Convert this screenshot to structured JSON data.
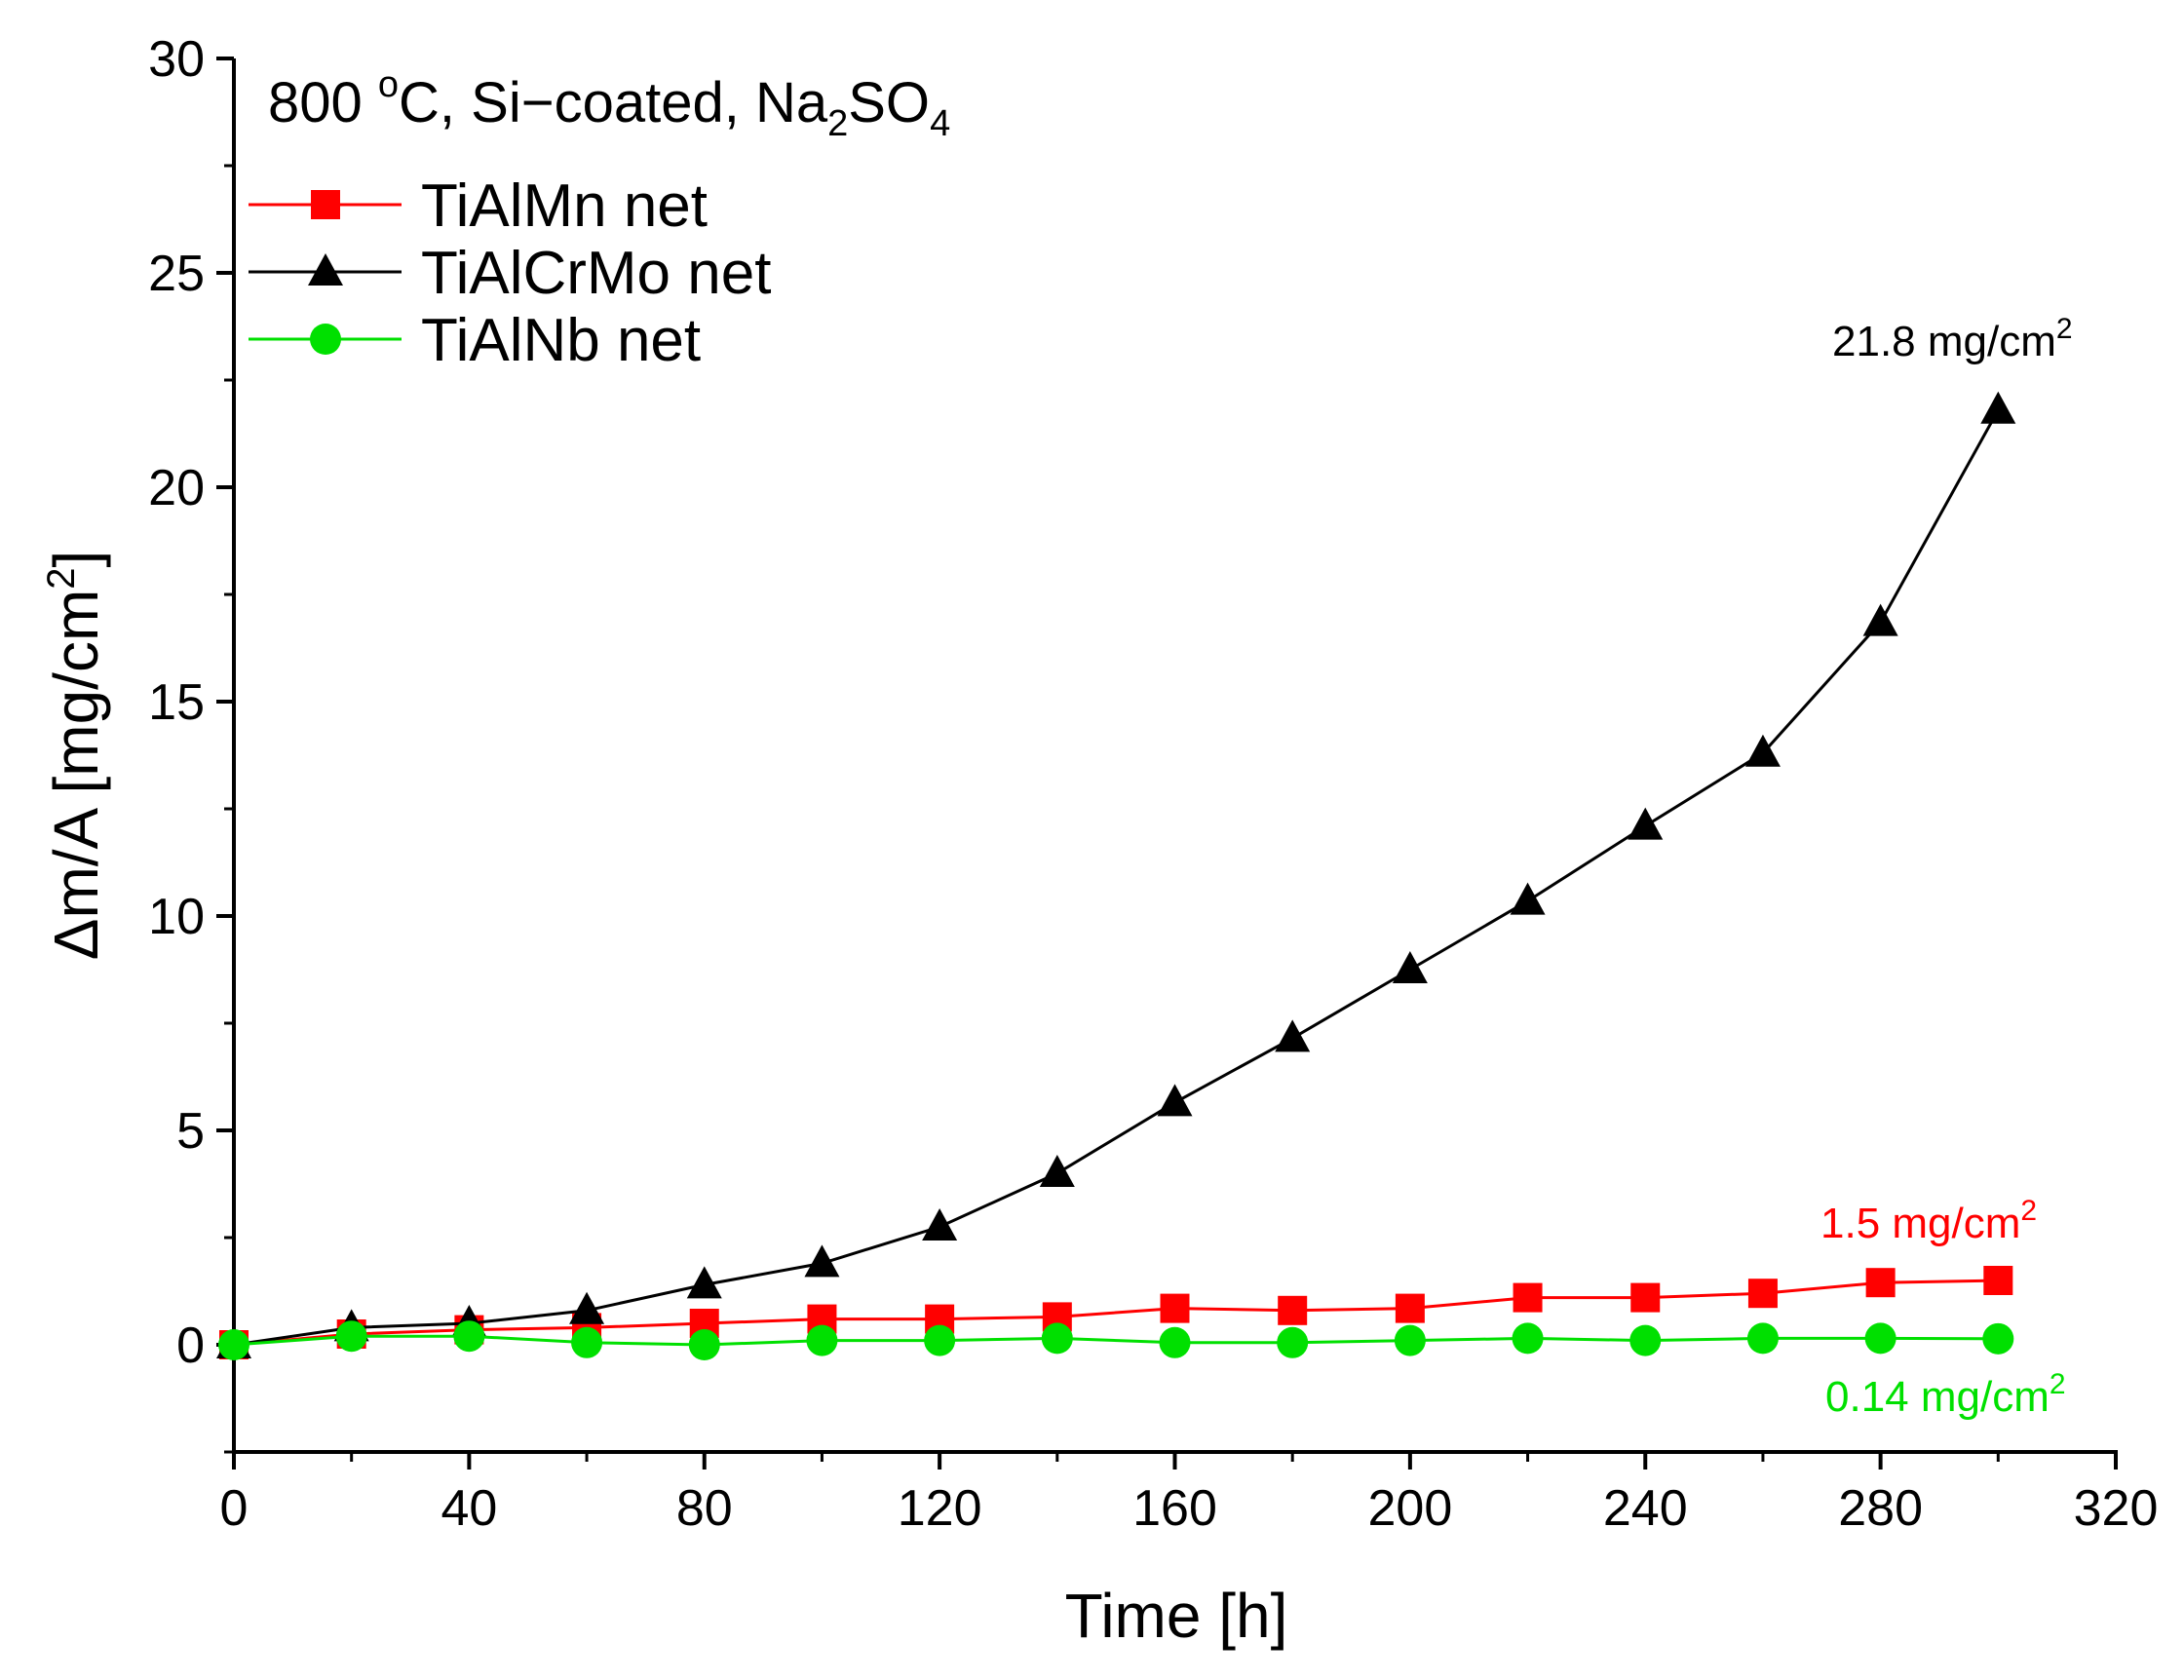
{
  "chart_data": {
    "type": "line",
    "title": "",
    "condition": {
      "prefix": "800 ",
      "degree": "o",
      "text": "C, Si−coated, Na",
      "sub1": "2",
      "mid": "SO",
      "sub2": "4"
    },
    "xlabel": "Time [h]",
    "ylabel": {
      "text": "Δm/A [mg/cm",
      "sup": "2",
      "close": "]"
    },
    "xlim": [
      0,
      320
    ],
    "ylim": [
      -2.5,
      30
    ],
    "x_ticks": [
      0,
      40,
      80,
      120,
      160,
      200,
      240,
      280,
      320
    ],
    "x_tick_labels": [
      "0",
      "40",
      "80",
      "120",
      "160",
      "200",
      "240",
      "280",
      "320"
    ],
    "y_ticks": [
      0,
      5,
      10,
      15,
      20,
      25,
      30
    ],
    "y_tick_labels": [
      "0",
      "5",
      "10",
      "15",
      "20",
      "25",
      "30"
    ],
    "x": [
      0,
      20,
      40,
      60,
      80,
      100,
      120,
      140,
      160,
      180,
      200,
      220,
      240,
      260,
      280,
      300
    ],
    "series": [
      {
        "name": "TiAlMn net",
        "color": "#ff0000",
        "marker": "square",
        "values": [
          0,
          0.25,
          0.35,
          0.4,
          0.5,
          0.6,
          0.6,
          0.65,
          0.85,
          0.8,
          0.85,
          1.1,
          1.1,
          1.2,
          1.45,
          1.5
        ]
      },
      {
        "name": "TiAlCrMo net",
        "color": "#000000",
        "marker": "triangle",
        "values": [
          0,
          0.4,
          0.5,
          0.8,
          1.4,
          1.9,
          2.75,
          4.0,
          5.65,
          7.15,
          8.75,
          10.35,
          12.1,
          13.8,
          16.85,
          21.8
        ]
      },
      {
        "name": "TiAlNb net",
        "color": "#00e000",
        "marker": "circle",
        "values": [
          0,
          0.2,
          0.2,
          0.05,
          0.0,
          0.1,
          0.1,
          0.15,
          0.05,
          0.05,
          0.1,
          0.15,
          0.1,
          0.15,
          0.15,
          0.14
        ]
      }
    ],
    "annotations": [
      {
        "text": "21.8 mg/cm",
        "sup": "2",
        "color": "#000000",
        "series": "TiAlCrMo net"
      },
      {
        "text": "1.5 mg/cm",
        "sup": "2",
        "color": "#ff0000",
        "series": "TiAlMn net"
      },
      {
        "text": "0.14 mg/cm",
        "sup": "2",
        "color": "#00e000",
        "series": "TiAlNb net"
      }
    ],
    "legend_position": "top-left",
    "grid": false
  }
}
